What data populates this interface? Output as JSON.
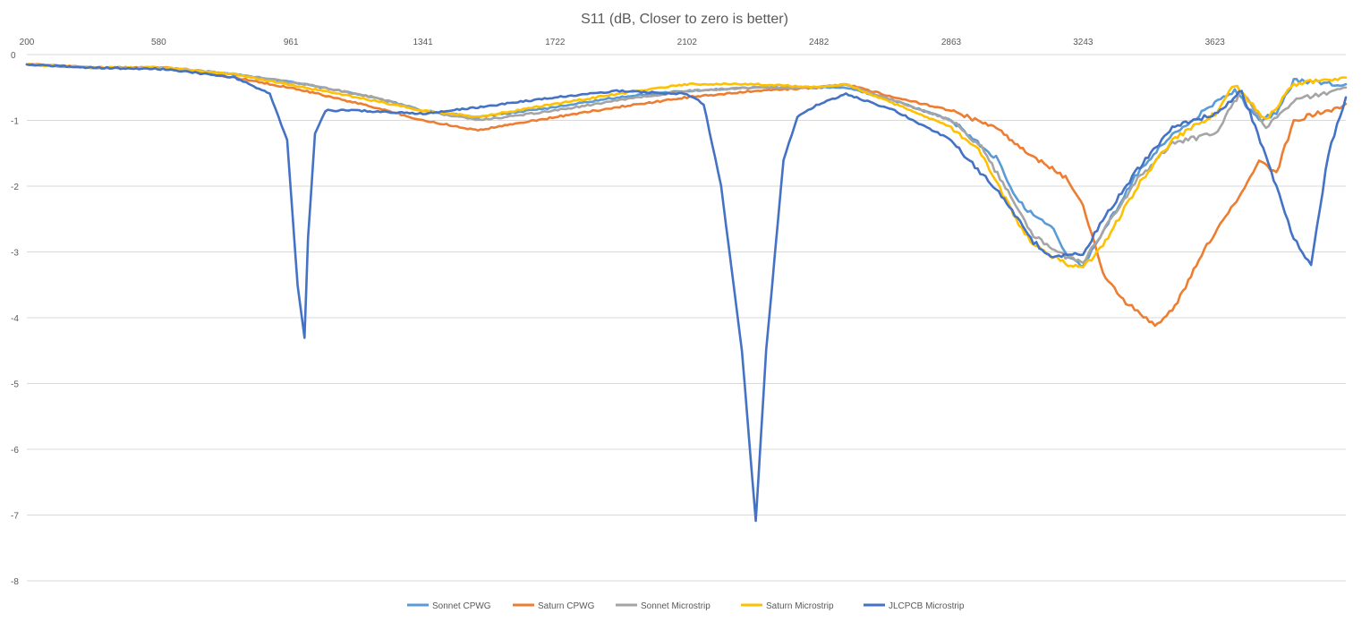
{
  "chart_data": {
    "type": "line",
    "title": "S11 (dB, Closer to zero is better)",
    "xlabel": "",
    "ylabel": "",
    "x_axis_position": "top",
    "x_ticks": [
      200,
      580,
      961,
      1341,
      1722,
      2102,
      2482,
      2863,
      3243,
      3623
    ],
    "xlim": [
      200,
      4000
    ],
    "y_ticks": [
      0,
      -1,
      -2,
      -3,
      -4,
      -5,
      -6,
      -7,
      -8
    ],
    "ylim": [
      -8,
      0
    ],
    "grid": true,
    "legend_position": "bottom",
    "series": [
      {
        "name": "Sonnet CPWG",
        "color": "#5B9BD5",
        "points": [
          [
            200,
            -0.15
          ],
          [
            400,
            -0.2
          ],
          [
            600,
            -0.2
          ],
          [
            800,
            -0.3
          ],
          [
            1000,
            -0.45
          ],
          [
            1200,
            -0.65
          ],
          [
            1341,
            -0.85
          ],
          [
            1500,
            -0.95
          ],
          [
            1722,
            -0.8
          ],
          [
            1900,
            -0.65
          ],
          [
            2102,
            -0.55
          ],
          [
            2300,
            -0.5
          ],
          [
            2482,
            -0.5
          ],
          [
            2560,
            -0.5
          ],
          [
            2700,
            -0.7
          ],
          [
            2863,
            -1.0
          ],
          [
            3000,
            -1.6
          ],
          [
            3050,
            -2.2
          ],
          [
            3100,
            -2.45
          ],
          [
            3150,
            -2.6
          ],
          [
            3200,
            -3.1
          ],
          [
            3243,
            -3.2
          ],
          [
            3300,
            -2.7
          ],
          [
            3400,
            -1.8
          ],
          [
            3500,
            -1.2
          ],
          [
            3623,
            -0.75
          ],
          [
            3680,
            -0.55
          ],
          [
            3750,
            -1.0
          ],
          [
            3800,
            -0.9
          ],
          [
            3850,
            -0.4
          ],
          [
            4000,
            -0.45
          ]
        ]
      },
      {
        "name": "Saturn CPWG",
        "color": "#ED7D31",
        "points": [
          [
            200,
            -0.15
          ],
          [
            400,
            -0.2
          ],
          [
            600,
            -0.2
          ],
          [
            800,
            -0.35
          ],
          [
            1000,
            -0.55
          ],
          [
            1200,
            -0.8
          ],
          [
            1341,
            -1.0
          ],
          [
            1500,
            -1.15
          ],
          [
            1722,
            -0.95
          ],
          [
            1900,
            -0.8
          ],
          [
            2102,
            -0.65
          ],
          [
            2300,
            -0.55
          ],
          [
            2482,
            -0.5
          ],
          [
            2560,
            -0.45
          ],
          [
            2700,
            -0.65
          ],
          [
            2863,
            -0.85
          ],
          [
            3000,
            -1.15
          ],
          [
            3100,
            -1.55
          ],
          [
            3200,
            -1.9
          ],
          [
            3243,
            -2.3
          ],
          [
            3300,
            -3.3
          ],
          [
            3350,
            -3.7
          ],
          [
            3400,
            -3.9
          ],
          [
            3450,
            -4.1
          ],
          [
            3500,
            -3.9
          ],
          [
            3600,
            -2.9
          ],
          [
            3700,
            -2.1
          ],
          [
            3750,
            -1.6
          ],
          [
            3800,
            -1.8
          ],
          [
            3850,
            -1.0
          ],
          [
            3950,
            -0.85
          ],
          [
            4000,
            -0.75
          ]
        ]
      },
      {
        "name": "Sonnet Microstrip",
        "color": "#A5A5A5",
        "points": [
          [
            200,
            -0.15
          ],
          [
            400,
            -0.2
          ],
          [
            600,
            -0.2
          ],
          [
            800,
            -0.3
          ],
          [
            1000,
            -0.45
          ],
          [
            1200,
            -0.65
          ],
          [
            1341,
            -0.85
          ],
          [
            1500,
            -1.0
          ],
          [
            1722,
            -0.85
          ],
          [
            1900,
            -0.7
          ],
          [
            2102,
            -0.55
          ],
          [
            2300,
            -0.5
          ],
          [
            2482,
            -0.5
          ],
          [
            2560,
            -0.45
          ],
          [
            2700,
            -0.7
          ],
          [
            2863,
            -1.0
          ],
          [
            2950,
            -1.4
          ],
          [
            3050,
            -2.3
          ],
          [
            3100,
            -2.75
          ],
          [
            3200,
            -3.1
          ],
          [
            3243,
            -3.15
          ],
          [
            3300,
            -2.7
          ],
          [
            3400,
            -1.9
          ],
          [
            3500,
            -1.35
          ],
          [
            3623,
            -1.2
          ],
          [
            3700,
            -0.55
          ],
          [
            3770,
            -1.1
          ],
          [
            3850,
            -0.7
          ],
          [
            4000,
            -0.5
          ]
        ]
      },
      {
        "name": "Saturn Microstrip",
        "color": "#FFC000",
        "points": [
          [
            200,
            -0.15
          ],
          [
            400,
            -0.2
          ],
          [
            600,
            -0.2
          ],
          [
            800,
            -0.3
          ],
          [
            1000,
            -0.5
          ],
          [
            1200,
            -0.7
          ],
          [
            1341,
            -0.85
          ],
          [
            1500,
            -0.95
          ],
          [
            1722,
            -0.75
          ],
          [
            1900,
            -0.6
          ],
          [
            2102,
            -0.45
          ],
          [
            2300,
            -0.45
          ],
          [
            2482,
            -0.5
          ],
          [
            2560,
            -0.45
          ],
          [
            2700,
            -0.75
          ],
          [
            2863,
            -1.1
          ],
          [
            2950,
            -1.5
          ],
          [
            3050,
            -2.5
          ],
          [
            3100,
            -2.9
          ],
          [
            3200,
            -3.2
          ],
          [
            3243,
            -3.25
          ],
          [
            3300,
            -2.9
          ],
          [
            3400,
            -2.0
          ],
          [
            3500,
            -1.3
          ],
          [
            3623,
            -0.9
          ],
          [
            3680,
            -0.45
          ],
          [
            3770,
            -1.0
          ],
          [
            3850,
            -0.45
          ],
          [
            4000,
            -0.35
          ]
        ]
      },
      {
        "name": "JLCPCB Microstrip",
        "color": "#4472C4",
        "points": [
          [
            200,
            -0.15
          ],
          [
            400,
            -0.2
          ],
          [
            600,
            -0.22
          ],
          [
            800,
            -0.35
          ],
          [
            900,
            -0.6
          ],
          [
            950,
            -1.3
          ],
          [
            980,
            -3.5
          ],
          [
            1000,
            -4.3
          ],
          [
            1010,
            -2.8
          ],
          [
            1030,
            -1.2
          ],
          [
            1060,
            -0.85
          ],
          [
            1150,
            -0.85
          ],
          [
            1341,
            -0.9
          ],
          [
            1500,
            -0.8
          ],
          [
            1722,
            -0.65
          ],
          [
            1900,
            -0.55
          ],
          [
            2102,
            -0.6
          ],
          [
            2150,
            -0.75
          ],
          [
            2200,
            -2.0
          ],
          [
            2260,
            -4.5
          ],
          [
            2300,
            -7.1
          ],
          [
            2330,
            -4.5
          ],
          [
            2380,
            -1.6
          ],
          [
            2420,
            -0.95
          ],
          [
            2482,
            -0.75
          ],
          [
            2560,
            -0.6
          ],
          [
            2700,
            -0.85
          ],
          [
            2863,
            -1.3
          ],
          [
            3000,
            -2.1
          ],
          [
            3100,
            -2.85
          ],
          [
            3150,
            -3.05
          ],
          [
            3243,
            -3.05
          ],
          [
            3300,
            -2.5
          ],
          [
            3400,
            -1.75
          ],
          [
            3500,
            -1.1
          ],
          [
            3623,
            -0.9
          ],
          [
            3700,
            -0.55
          ],
          [
            3800,
            -2.0
          ],
          [
            3850,
            -2.8
          ],
          [
            3900,
            -3.2
          ],
          [
            3950,
            -1.5
          ],
          [
            4000,
            -0.65
          ]
        ]
      }
    ]
  }
}
